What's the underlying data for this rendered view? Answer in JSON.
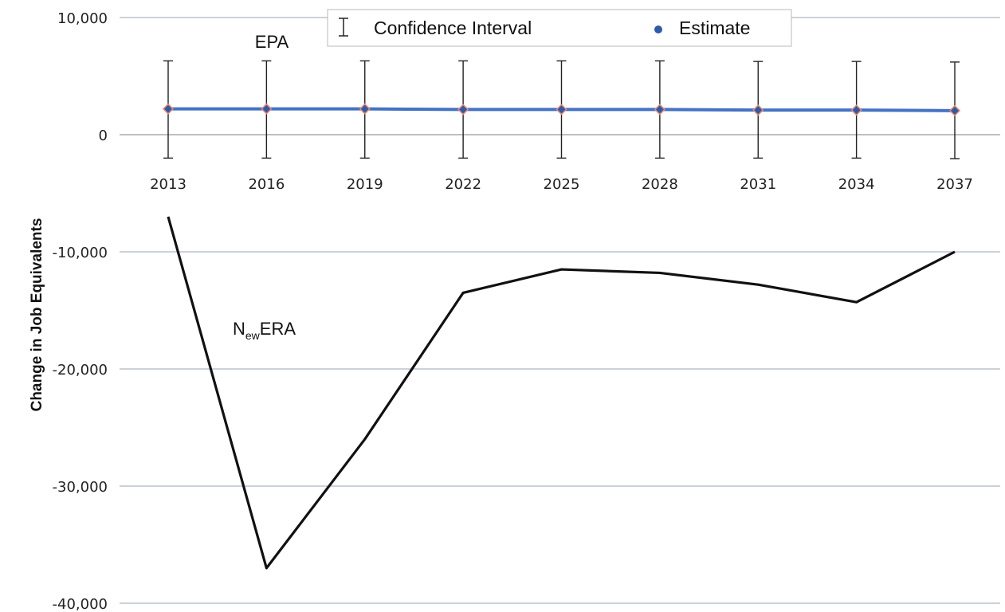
{
  "chart_data": {
    "type": "line",
    "xlabel": "",
    "ylabel": "Change in Job Equivalents",
    "ylim": [
      -40000,
      10000
    ],
    "yticks": [
      10000,
      0,
      -10000,
      -20000,
      -30000,
      -40000
    ],
    "ytick_labels": [
      "10,000",
      "0",
      "-10,000",
      "-20,000",
      "-30,000",
      "-40,000"
    ],
    "x": [
      2013,
      2016,
      2019,
      2022,
      2025,
      2028,
      2031,
      2034,
      2037
    ],
    "xtick_labels": [
      "2013",
      "2016",
      "2019",
      "2022",
      "2025",
      "2028",
      "2031",
      "2034",
      "2037"
    ],
    "grid": "horizontal",
    "legend": {
      "placement": "top-center",
      "entries": [
        "Confidence Interval",
        "Estimate"
      ]
    },
    "series": [
      {
        "name": "EPA",
        "label_main": "EPA",
        "values": [
          2200,
          2200,
          2200,
          2150,
          2150,
          2150,
          2100,
          2100,
          2050
        ],
        "ci_low": [
          -2000,
          -2000,
          -2000,
          -2000,
          -2000,
          -2000,
          -2000,
          -2000,
          -2050
        ],
        "ci_high": [
          6300,
          6300,
          6300,
          6300,
          6300,
          6300,
          6250,
          6250,
          6200
        ],
        "color": "#4472c4",
        "marker_color": "#2e5aa8",
        "marker_edge": "#e8876e"
      },
      {
        "name": "NewERA",
        "label_main": "N",
        "label_sub": "ew",
        "label_rest": "ERA",
        "values": [
          -7000,
          -37000,
          -26000,
          -13500,
          -11500,
          -11800,
          -12800,
          -14300,
          -10000
        ],
        "color": "#111111"
      }
    ]
  }
}
